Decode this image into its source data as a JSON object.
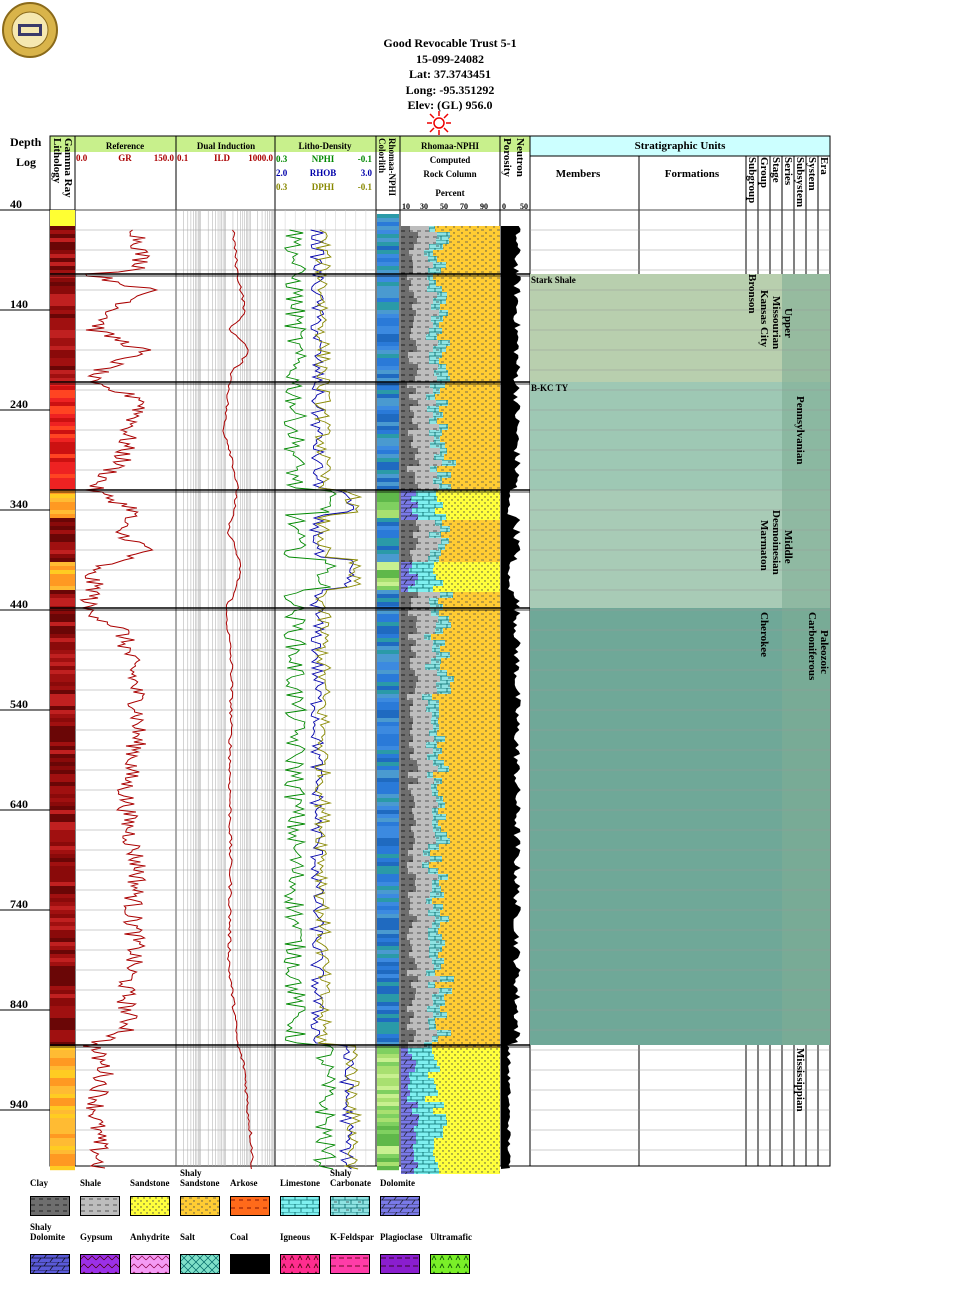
{
  "header": {
    "lines": [
      "Good Revocable Trust 5-1",
      "15-099-24082",
      "Lat: 37.3743451",
      "Long: -95.351292",
      "Elev: (GL) 956.0"
    ]
  },
  "columns": {
    "depth_title": "Depth",
    "depth_sub": "Log",
    "lithology": "Lithology",
    "gamma_ray": "Gamma Ray",
    "reference": "Reference",
    "gr_min": "0.0",
    "gr_name": "GR",
    "gr_max": "150.0",
    "dual_induction": "Dual Induction",
    "ild_min": "0.1",
    "ild_name": "ILD",
    "ild_max": "1000.0",
    "litho_density": "Litho-Density",
    "nphi_min": "0.3",
    "nphi_name": "NPHI",
    "nphi_max": "-0.1",
    "rhob_min": "2.0",
    "rhob_name": "RHOB",
    "rhob_max": "3.0",
    "dphi_min": "0.3",
    "dphi_name": "DPHI",
    "dphi_max": "-0.1",
    "colorlith": "Colorlith",
    "rhomaa_nphi_v": "Rhomaa-NPHI",
    "rhomaa_nphi": "Rhomaa-NPHI",
    "computed": "Computed",
    "rock_column": "Rock Column",
    "percent": "Percent",
    "pct_ticks": [
      "10",
      "30",
      "50",
      "70",
      "90"
    ],
    "porosity": "Porosity",
    "neutron": "Neutron",
    "por_ticks": [
      "0",
      "50"
    ],
    "strat_units": "Stratigraphic Units",
    "members": "Members",
    "formations": "Formations",
    "strat_cols": [
      "Subgroup",
      "Group",
      "Stage",
      "Series",
      "Subsystem",
      "System",
      "Era"
    ]
  },
  "depth_ticks": [
    "40",
    "140",
    "240",
    "340",
    "440",
    "540",
    "640",
    "740",
    "840",
    "940"
  ],
  "strat": {
    "members": [
      "Stark Shale",
      "B-KC TY"
    ],
    "subgroup": "Bronson",
    "group_kc": "Kansas City",
    "stage_upper_missourian": [
      "Upper",
      "Missourian"
    ],
    "pennsylvanian": "Pennsylvanian",
    "marmaton": "Marmaton",
    "desmoinesian": "Desmoinesian",
    "middle": "Middle",
    "cherokee": "Cherokee",
    "carboniferous": "Carboniferous",
    "paleozoic": "Paleozoic",
    "mississippian": "Mississippian"
  },
  "legend": [
    {
      "label": "Clay",
      "color": "#6e6e6e"
    },
    {
      "label": "Shale",
      "color": "#bdbdbd"
    },
    {
      "label": "Sandstone",
      "color": "#ffff3c"
    },
    {
      "label": "Shaly Sandstone",
      "color": "#ffcc33"
    },
    {
      "label": "Arkose",
      "color": "#ff6a1a"
    },
    {
      "label": "Limestone",
      "color": "#7ff0f0"
    },
    {
      "label": "Shaly Carbonate",
      "color": "#8fe3e3"
    },
    {
      "label": "Dolomite",
      "color": "#7a7ae8"
    },
    {
      "label": "Shaly Dolomite",
      "color": "#5a5ad8"
    },
    {
      "label": "Gypsum",
      "color": "#9b30e8"
    },
    {
      "label": "Anhydrite",
      "color": "#f49af4"
    },
    {
      "label": "Salt",
      "color": "#7fe0c8"
    },
    {
      "label": "Coal",
      "color": "#000000"
    },
    {
      "label": "Igneous",
      "color": "#ff2d8f"
    },
    {
      "label": "K-Feldspar",
      "color": "#ff3ca8"
    },
    {
      "label": "Plagioclase",
      "color": "#8a1ecf"
    },
    {
      "label": "Ultramafic",
      "color": "#7aef28"
    }
  ],
  "chart_data": {
    "type": "line",
    "title": "Good Revocable Trust 5-1",
    "depth_range": [
      40,
      1000
    ],
    "zone_boundaries": [
      104,
      212,
      320,
      438,
      875
    ],
    "tracks": [
      {
        "name": "GR",
        "scale": [
          0,
          150
        ],
        "depth": [
          60,
          100,
          104,
          120,
          140,
          160,
          180,
          200,
          212,
          230,
          260,
          290,
          320,
          340,
          360,
          380,
          400,
          420,
          438,
          460,
          500,
          540,
          580,
          620,
          660,
          700,
          740,
          780,
          820,
          860,
          875,
          900,
          940,
          980
        ],
        "values": [
          95,
          100,
          20,
          110,
          60,
          30,
          100,
          40,
          15,
          105,
          80,
          70,
          25,
          90,
          60,
          110,
          20,
          30,
          15,
          70,
          85,
          95,
          90,
          75,
          80,
          95,
          85,
          90,
          75,
          80,
          25,
          45,
          30,
          35
        ]
      },
      {
        "name": "ILD",
        "scale": [
          0.1,
          1000
        ],
        "depth": [
          60,
          104,
          140,
          160,
          180,
          200,
          212,
          260,
          320,
          360,
          400,
          438,
          500,
          600,
          700,
          800,
          875,
          900,
          940,
          980
        ],
        "values": [
          20,
          30,
          60,
          10,
          80,
          20,
          15,
          8,
          30,
          12,
          40,
          10,
          18,
          15,
          16,
          14,
          30,
          60,
          80,
          120
        ]
      }
    ]
  }
}
